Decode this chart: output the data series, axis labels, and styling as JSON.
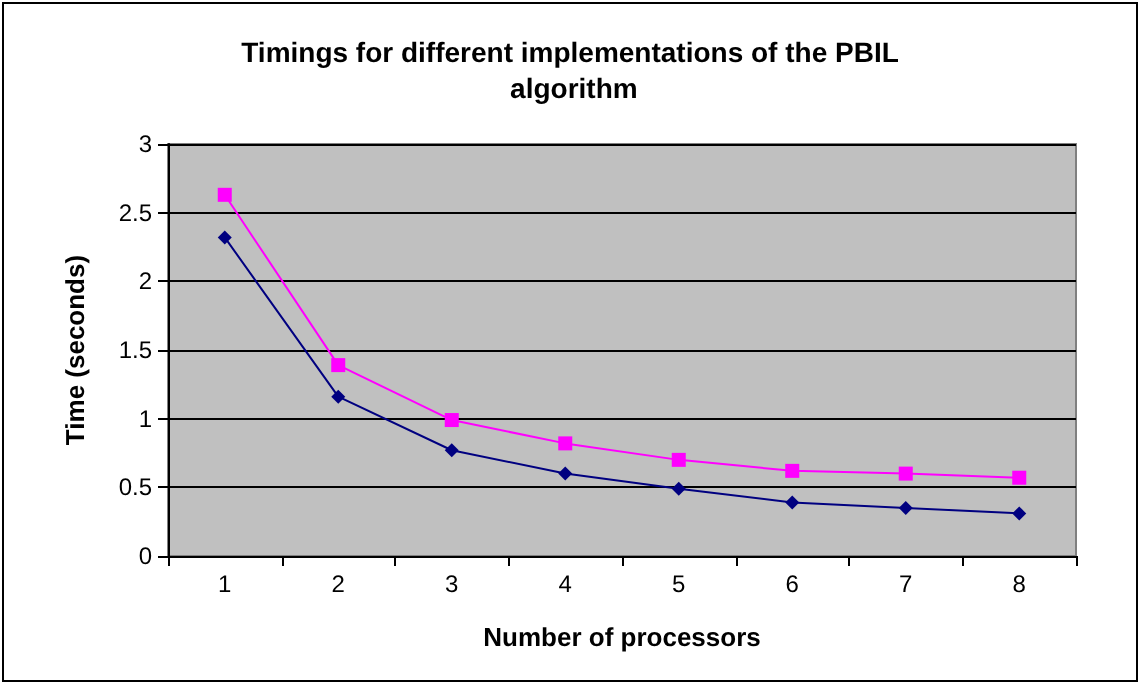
{
  "chart_data": {
    "type": "line",
    "title": "Timings for different implementations of the PBIL algorithm",
    "xlabel": "Number of processors",
    "ylabel": "Time (seconds)",
    "categories": [
      "1",
      "2",
      "3",
      "4",
      "5",
      "6",
      "7",
      "8"
    ],
    "series": [
      {
        "color": "#000080",
        "marker": "diamond",
        "values": [
          2.32,
          1.16,
          0.77,
          0.6,
          0.49,
          0.39,
          0.35,
          0.31
        ]
      },
      {
        "color": "#ff00ff",
        "marker": "square",
        "values": [
          2.63,
          1.39,
          0.99,
          0.82,
          0.7,
          0.62,
          0.6,
          0.57
        ]
      }
    ],
    "ylim": [
      0,
      3
    ],
    "yticks": [
      0,
      0.5,
      1,
      1.5,
      2,
      2.5,
      3
    ],
    "grid": "y",
    "legend": false,
    "line_style": "solid"
  }
}
